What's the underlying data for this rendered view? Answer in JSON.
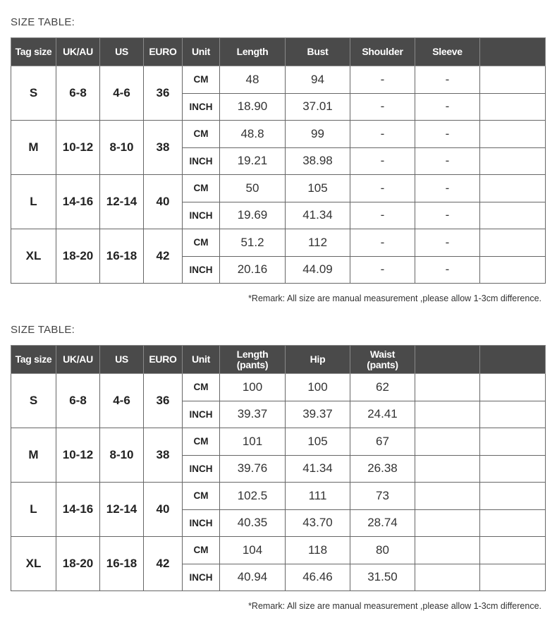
{
  "tables": [
    {
      "title": "SIZE TABLE:",
      "headers": [
        "Tag size",
        "UK/AU",
        "US",
        "EURO",
        "Unit",
        "Length",
        "Bust",
        "Shoulder",
        "Sleeve",
        ""
      ],
      "rows": [
        {
          "tag": "S",
          "uk": "6-8",
          "us": "4-6",
          "euro": "36",
          "cm": [
            "48",
            "94",
            "-",
            "-",
            ""
          ],
          "inch": [
            "18.90",
            "37.01",
            "-",
            "-",
            ""
          ]
        },
        {
          "tag": "M",
          "uk": "10-12",
          "us": "8-10",
          "euro": "38",
          "cm": [
            "48.8",
            "99",
            "-",
            "-",
            ""
          ],
          "inch": [
            "19.21",
            "38.98",
            "-",
            "-",
            ""
          ]
        },
        {
          "tag": "L",
          "uk": "14-16",
          "us": "12-14",
          "euro": "40",
          "cm": [
            "50",
            "105",
            "-",
            "-",
            ""
          ],
          "inch": [
            "19.69",
            "41.34",
            "-",
            "-",
            ""
          ]
        },
        {
          "tag": "XL",
          "uk": "18-20",
          "us": "16-18",
          "euro": "42",
          "cm": [
            "51.2",
            "112",
            "-",
            "-",
            ""
          ],
          "inch": [
            "20.16",
            "44.09",
            "-",
            "-",
            ""
          ]
        }
      ],
      "unit_cm": "CM",
      "unit_inch": "INCH",
      "remark": "*Remark: All size are manual measurement ,please allow 1-3cm difference."
    },
    {
      "title": "SIZE TABLE:",
      "headers": [
        "Tag size",
        "UK/AU",
        "US",
        "EURO",
        "Unit",
        "Length\n(pants)",
        "Hip",
        "Waist\n(pants)",
        "",
        ""
      ],
      "rows": [
        {
          "tag": "S",
          "uk": "6-8",
          "us": "4-6",
          "euro": "36",
          "cm": [
            "100",
            "100",
            "62",
            "",
            ""
          ],
          "inch": [
            "39.37",
            "39.37",
            "24.41",
            "",
            ""
          ]
        },
        {
          "tag": "M",
          "uk": "10-12",
          "us": "8-10",
          "euro": "38",
          "cm": [
            "101",
            "105",
            "67",
            "",
            ""
          ],
          "inch": [
            "39.76",
            "41.34",
            "26.38",
            "",
            ""
          ]
        },
        {
          "tag": "L",
          "uk": "14-16",
          "us": "12-14",
          "euro": "40",
          "cm": [
            "102.5",
            "111",
            "73",
            "",
            ""
          ],
          "inch": [
            "40.35",
            "43.70",
            "28.74",
            "",
            ""
          ]
        },
        {
          "tag": "XL",
          "uk": "18-20",
          "us": "16-18",
          "euro": "42",
          "cm": [
            "104",
            "118",
            "80",
            "",
            ""
          ],
          "inch": [
            "40.94",
            "46.46",
            "31.50",
            "",
            ""
          ]
        }
      ],
      "unit_cm": "CM",
      "unit_inch": "INCH",
      "remark": "*Remark: All size are manual measurement ,please allow 1-3cm difference."
    }
  ]
}
